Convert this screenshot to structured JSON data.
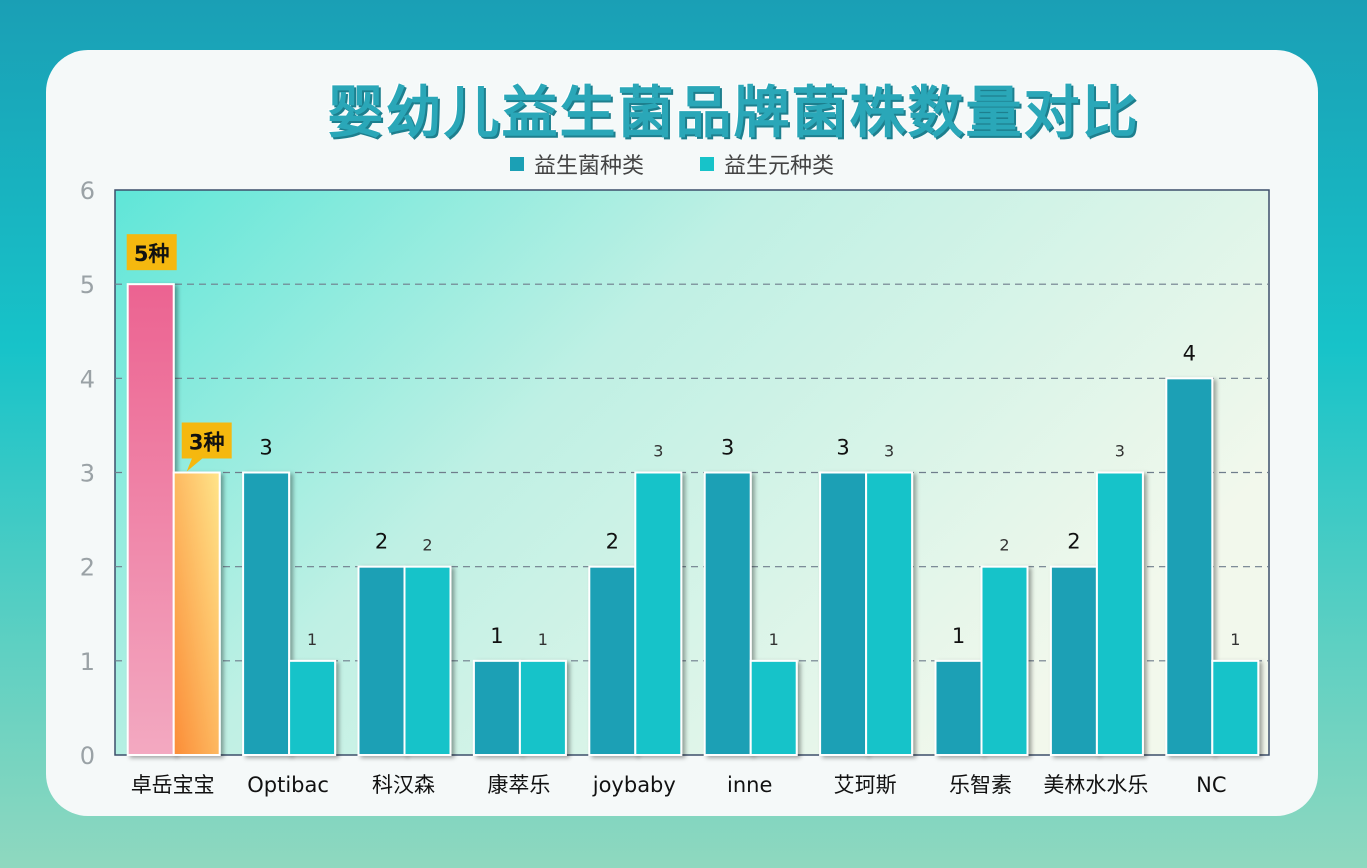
{
  "title": "婴幼儿益生菌品牌菌株数量对比",
  "colors": {
    "series1": "#1ba0b5",
    "series2": "#17c3c9",
    "highlight1_top": "#ec6391",
    "highlight1_bottom": "#f3a9c1",
    "highlight2_top": "#ffe58a",
    "highlight2_bottom": "#fb8c37",
    "callout_bg": "#f5b80f"
  },
  "chart_data": {
    "type": "bar",
    "title": "婴幼儿益生菌品牌菌株数量对比",
    "categories": [
      "卓岳宝宝",
      "Optibac",
      "科汉森",
      "康萃乐",
      "joybaby",
      "inne",
      "艾珂斯",
      "乐智素",
      "美林水水乐",
      "NC"
    ],
    "series": [
      {
        "name": "益生菌种类",
        "values": [
          5,
          3,
          2,
          1,
          2,
          3,
          3,
          1,
          2,
          4
        ]
      },
      {
        "name": "益生元种类",
        "values": [
          3,
          1,
          2,
          1,
          3,
          1,
          3,
          2,
          3,
          1
        ]
      }
    ],
    "ylim": [
      0,
      6
    ],
    "yticks": [
      0,
      1,
      2,
      3,
      4,
      5,
      6
    ],
    "grid": true,
    "legend": "top-center",
    "callouts": [
      "5种",
      "3种"
    ],
    "data_labels": {
      "series1": [
        "",
        "3",
        "2",
        "1",
        "2",
        "3",
        "3",
        "1",
        "2",
        "4"
      ],
      "series2": [
        "",
        "1",
        "2",
        "1",
        "3",
        "1",
        "3",
        "2",
        "3",
        "1"
      ]
    }
  }
}
